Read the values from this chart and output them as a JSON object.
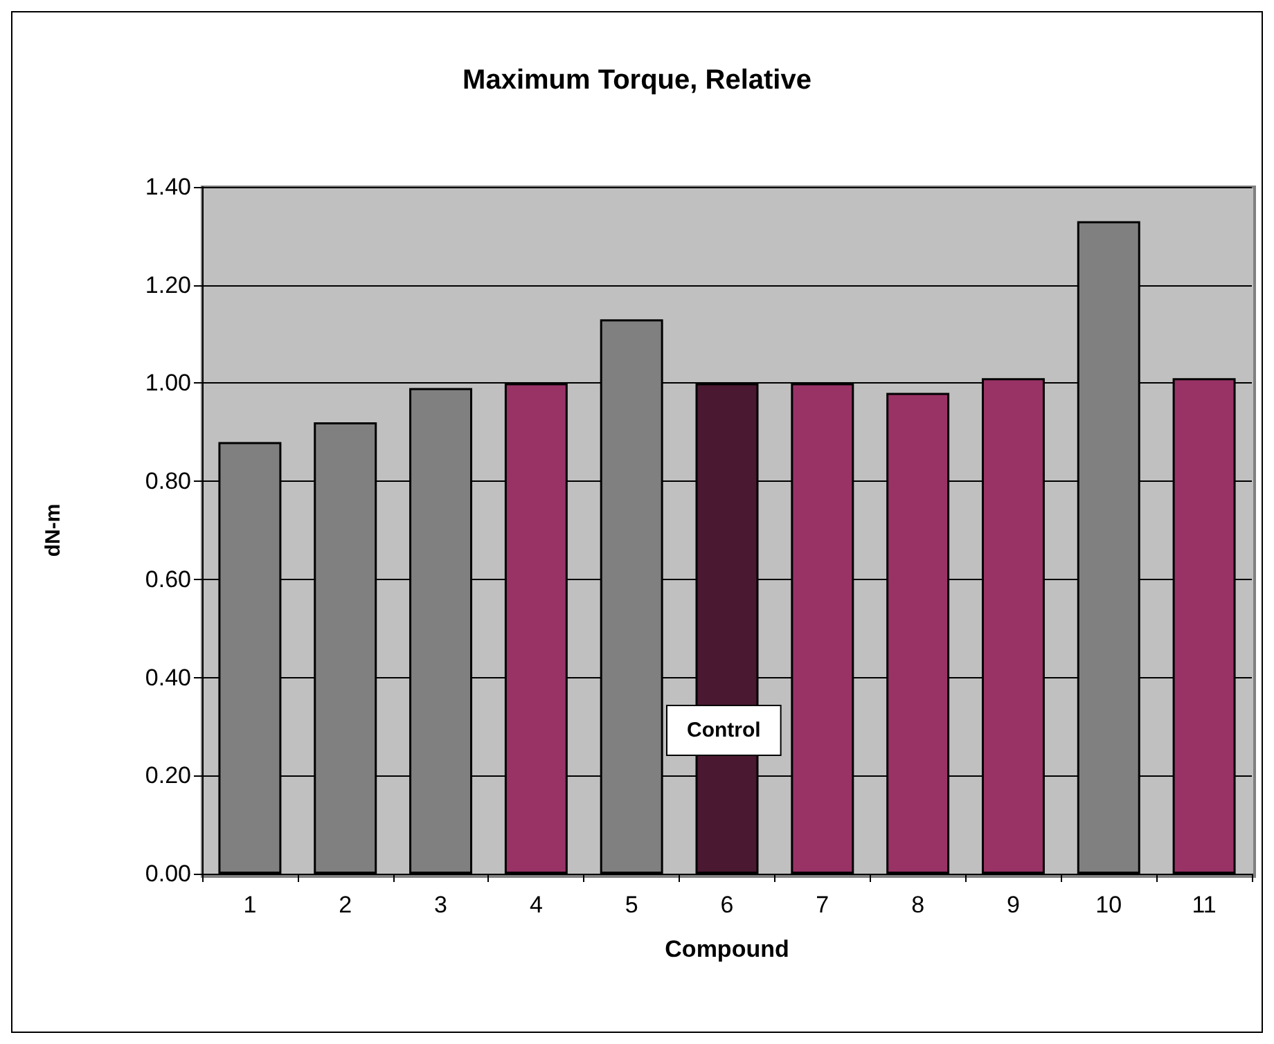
{
  "chart_data": {
    "type": "bar",
    "title": "Maximum Torque, Relative",
    "xlabel": "Compound",
    "ylabel": "dN-m",
    "categories": [
      "1",
      "2",
      "3",
      "4",
      "5",
      "6",
      "7",
      "8",
      "9",
      "10",
      "11"
    ],
    "values": [
      0.88,
      0.92,
      0.99,
      1.0,
      1.13,
      1.0,
      1.0,
      0.98,
      1.01,
      1.33,
      1.01
    ],
    "colors": [
      "#808080",
      "#808080",
      "#808080",
      "#993366",
      "#808080",
      "#4a1830",
      "#993366",
      "#993366",
      "#993366",
      "#808080",
      "#993366"
    ],
    "ylim": [
      0,
      1.4
    ],
    "yticks": [
      {
        "value": 0,
        "label": "0.00"
      },
      {
        "value": 0.2,
        "label": "0.20"
      },
      {
        "value": 0.4,
        "label": "0.40"
      },
      {
        "value": 0.6,
        "label": "0.60"
      },
      {
        "value": 0.8,
        "label": "0.80"
      },
      {
        "value": 1.0,
        "label": "1.00"
      },
      {
        "value": 1.2,
        "label": "1.20"
      },
      {
        "value": 1.4,
        "label": "1.40"
      }
    ],
    "grid": "y",
    "annotations": [
      "Control"
    ]
  }
}
